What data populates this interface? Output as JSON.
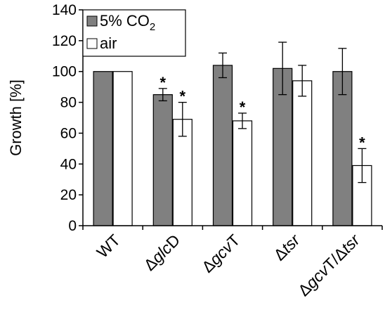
{
  "chart_data": {
    "type": "bar",
    "ylabel": "Growth [%]",
    "ylim": [
      0,
      140
    ],
    "yticks": [
      0,
      20,
      40,
      60,
      80,
      100,
      120,
      140
    ],
    "categories": [
      {
        "pre": "",
        "italic": "",
        "post": "WT"
      },
      {
        "pre": "Δ",
        "italic": "glc",
        "post": "D"
      },
      {
        "pre": "Δ",
        "italic": "gcv",
        "post": "T"
      },
      {
        "pre": "Δ",
        "italic": "tsr",
        "post": ""
      },
      {
        "pre": "Δ",
        "italic": "gcv",
        "post": "T/Δtsr",
        "post_italic_part": "tsr"
      }
    ],
    "series": [
      {
        "name": "5% CO2",
        "name_main": "5% CO",
        "name_sub": "2",
        "color": "#808080",
        "values": [
          100,
          85,
          104,
          102,
          100
        ],
        "errors": [
          0,
          4,
          8,
          17,
          15
        ],
        "significant": [
          false,
          true,
          false,
          false,
          false
        ]
      },
      {
        "name": "air",
        "color": "#ffffff",
        "values": [
          100,
          69,
          68,
          94,
          39
        ],
        "errors": [
          0,
          11,
          5,
          10,
          11
        ],
        "significant": [
          false,
          true,
          true,
          false,
          true
        ]
      }
    ],
    "significance_marker": "*",
    "legend_position": "top-left"
  }
}
